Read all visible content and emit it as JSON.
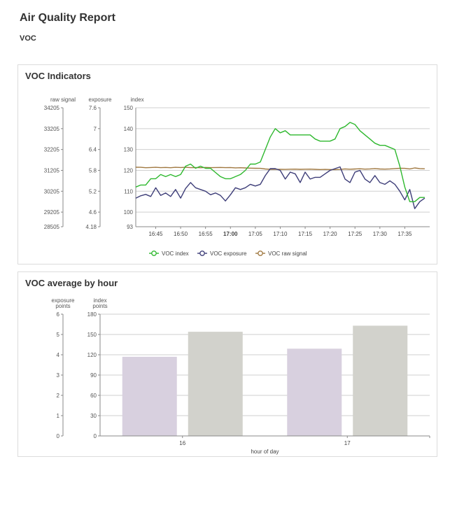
{
  "page": {
    "title": "Air Quality Report",
    "subtitle": "VOC"
  },
  "chart_data": [
    {
      "type": "line",
      "title": "VOC Indicators",
      "x_labels": [
        "16:45",
        "16:50",
        "16:55",
        "17:00",
        "17:05",
        "17:10",
        "17:15",
        "17:20",
        "17:25",
        "17:30",
        "17:35"
      ],
      "x_bold_label": "17:00",
      "x_range": [
        "16:41",
        "17:40"
      ],
      "axes": {
        "raw_signal": {
          "label": "raw signal",
          "min": 28505,
          "max": 34205,
          "ticks": [
            "34205",
            "33205",
            "32205",
            "31205",
            "30205",
            "29205",
            "28505"
          ]
        },
        "exposure": {
          "label": "exposure",
          "min": 4.18,
          "max": 7.6,
          "ticks": [
            "7.6",
            "7",
            "6.4",
            "5.8",
            "5.2",
            "4.6",
            "4.18"
          ]
        },
        "index": {
          "label": "index",
          "min": 93,
          "max": 150,
          "ticks": [
            "150",
            "140",
            "130",
            "120",
            "110",
            "100",
            "93"
          ]
        }
      },
      "grid": true,
      "legend_position": "bottom",
      "series": [
        {
          "name": "VOC index",
          "color": "#2eb82e",
          "axis": "index",
          "points": [
            [
              "16:41",
              112
            ],
            [
              "16:42",
              113
            ],
            [
              "16:43",
              113
            ],
            [
              "16:44",
              116
            ],
            [
              "16:45",
              116
            ],
            [
              "16:46",
              118
            ],
            [
              "16:47",
              117
            ],
            [
              "16:48",
              118
            ],
            [
              "16:49",
              117
            ],
            [
              "16:50",
              118
            ],
            [
              "16:51",
              122
            ],
            [
              "16:52",
              123
            ],
            [
              "16:53",
              121
            ],
            [
              "16:54",
              122
            ],
            [
              "16:55",
              121
            ],
            [
              "16:56",
              121
            ],
            [
              "16:57",
              119
            ],
            [
              "16:58",
              117
            ],
            [
              "16:59",
              116
            ],
            [
              "17:00",
              116
            ],
            [
              "17:01",
              117
            ],
            [
              "17:02",
              118
            ],
            [
              "17:03",
              120
            ],
            [
              "17:04",
              123
            ],
            [
              "17:05",
              123
            ],
            [
              "17:06",
              124
            ],
            [
              "17:07",
              130
            ],
            [
              "17:08",
              136
            ],
            [
              "17:09",
              140
            ],
            [
              "17:10",
              138
            ],
            [
              "17:11",
              139
            ],
            [
              "17:12",
              137
            ],
            [
              "17:13",
              137
            ],
            [
              "17:14",
              137
            ],
            [
              "17:15",
              137
            ],
            [
              "17:16",
              137
            ],
            [
              "17:17",
              135
            ],
            [
              "17:18",
              134
            ],
            [
              "17:19",
              134
            ],
            [
              "17:20",
              134
            ],
            [
              "17:21",
              135
            ],
            [
              "17:22",
              140
            ],
            [
              "17:23",
              141
            ],
            [
              "17:24",
              143
            ],
            [
              "17:25",
              142
            ],
            [
              "17:26",
              139
            ],
            [
              "17:27",
              137
            ],
            [
              "17:28",
              135
            ],
            [
              "17:29",
              133
            ],
            [
              "17:30",
              132
            ],
            [
              "17:31",
              132
            ],
            [
              "17:32",
              131
            ],
            [
              "17:33",
              130
            ],
            [
              "17:34",
              122
            ],
            [
              "17:35",
              112
            ],
            [
              "17:36",
              105
            ],
            [
              "17:37",
              105
            ],
            [
              "17:38",
              107
            ],
            [
              "17:39",
              107
            ]
          ]
        },
        {
          "name": "VOC exposure",
          "color": "#3d3d78",
          "axis": "exposure",
          "points": [
            [
              "16:41",
              5.0
            ],
            [
              "16:42",
              5.07
            ],
            [
              "16:43",
              5.11
            ],
            [
              "16:44",
              5.05
            ],
            [
              "16:45",
              5.3
            ],
            [
              "16:46",
              5.08
            ],
            [
              "16:47",
              5.15
            ],
            [
              "16:48",
              5.05
            ],
            [
              "16:49",
              5.25
            ],
            [
              "16:50",
              5.0
            ],
            [
              "16:51",
              5.28
            ],
            [
              "16:52",
              5.45
            ],
            [
              "16:53",
              5.3
            ],
            [
              "16:54",
              5.25
            ],
            [
              "16:55",
              5.2
            ],
            [
              "16:56",
              5.1
            ],
            [
              "16:57",
              5.15
            ],
            [
              "16:58",
              5.08
            ],
            [
              "16:59",
              4.92
            ],
            [
              "17:00",
              5.1
            ],
            [
              "17:01",
              5.3
            ],
            [
              "17:02",
              5.25
            ],
            [
              "17:03",
              5.3
            ],
            [
              "17:04",
              5.4
            ],
            [
              "17:05",
              5.35
            ],
            [
              "17:06",
              5.4
            ],
            [
              "17:07",
              5.65
            ],
            [
              "17:08",
              5.85
            ],
            [
              "17:09",
              5.85
            ],
            [
              "17:10",
              5.8
            ],
            [
              "17:11",
              5.55
            ],
            [
              "17:12",
              5.75
            ],
            [
              "17:13",
              5.7
            ],
            [
              "17:14",
              5.45
            ],
            [
              "17:15",
              5.75
            ],
            [
              "17:16",
              5.55
            ],
            [
              "17:17",
              5.6
            ],
            [
              "17:18",
              5.6
            ],
            [
              "17:19",
              5.7
            ],
            [
              "17:20",
              5.8
            ],
            [
              "17:21",
              5.85
            ],
            [
              "17:22",
              5.9
            ],
            [
              "17:23",
              5.55
            ],
            [
              "17:24",
              5.45
            ],
            [
              "17:25",
              5.75
            ],
            [
              "17:26",
              5.8
            ],
            [
              "17:27",
              5.55
            ],
            [
              "17:28",
              5.45
            ],
            [
              "17:29",
              5.65
            ],
            [
              "17:30",
              5.45
            ],
            [
              "17:31",
              5.4
            ],
            [
              "17:32",
              5.5
            ],
            [
              "17:33",
              5.4
            ],
            [
              "17:34",
              5.2
            ],
            [
              "17:35",
              4.95
            ],
            [
              "17:36",
              5.25
            ],
            [
              "17:37",
              4.7
            ],
            [
              "17:38",
              4.9
            ],
            [
              "17:39",
              5.0
            ]
          ]
        },
        {
          "name": "VOC raw signal",
          "color": "#a07840",
          "axis": "raw_signal",
          "points": [
            [
              "16:41",
              31355
            ],
            [
              "16:42",
              31350
            ],
            [
              "16:43",
              31330
            ],
            [
              "16:44",
              31340
            ],
            [
              "16:45",
              31350
            ],
            [
              "16:46",
              31335
            ],
            [
              "16:47",
              31345
            ],
            [
              "16:48",
              31330
            ],
            [
              "16:49",
              31350
            ],
            [
              "16:50",
              31340
            ],
            [
              "16:51",
              31350
            ],
            [
              "16:52",
              31335
            ],
            [
              "16:53",
              31340
            ],
            [
              "16:54",
              31330
            ],
            [
              "16:55",
              31345
            ],
            [
              "16:56",
              31335
            ],
            [
              "16:57",
              31340
            ],
            [
              "16:58",
              31345
            ],
            [
              "16:59",
              31335
            ],
            [
              "17:00",
              31340
            ],
            [
              "17:01",
              31325
            ],
            [
              "17:02",
              31330
            ],
            [
              "17:03",
              31320
            ],
            [
              "17:04",
              31310
            ],
            [
              "17:05",
              31305
            ],
            [
              "17:06",
              31300
            ],
            [
              "17:07",
              31270
            ],
            [
              "17:08",
              31255
            ],
            [
              "17:09",
              31250
            ],
            [
              "17:10",
              31255
            ],
            [
              "17:11",
              31250
            ],
            [
              "17:12",
              31260
            ],
            [
              "17:13",
              31265
            ],
            [
              "17:14",
              31255
            ],
            [
              "17:15",
              31260
            ],
            [
              "17:16",
              31265
            ],
            [
              "17:17",
              31255
            ],
            [
              "17:18",
              31245
            ],
            [
              "17:19",
              31250
            ],
            [
              "17:20",
              31245
            ],
            [
              "17:21",
              31240
            ],
            [
              "17:22",
              31250
            ],
            [
              "17:23",
              31275
            ],
            [
              "17:24",
              31260
            ],
            [
              "17:25",
              31270
            ],
            [
              "17:26",
              31280
            ],
            [
              "17:27",
              31265
            ],
            [
              "17:28",
              31275
            ],
            [
              "17:29",
              31290
            ],
            [
              "17:30",
              31270
            ],
            [
              "17:31",
              31265
            ],
            [
              "17:32",
              31275
            ],
            [
              "17:33",
              31290
            ],
            [
              "17:34",
              31305
            ],
            [
              "17:35",
              31300
            ],
            [
              "17:36",
              31275
            ],
            [
              "17:37",
              31320
            ],
            [
              "17:38",
              31290
            ],
            [
              "17:39",
              31280
            ]
          ]
        }
      ]
    },
    {
      "type": "bar",
      "title": "VOC average by hour",
      "categories": [
        "16",
        "17"
      ],
      "xlabel": "hour of day",
      "axes": {
        "exposure": {
          "label_line1": "exposure",
          "label_line2": "points",
          "min": 0,
          "max": 6,
          "ticks": [
            "6",
            "5",
            "4",
            "3",
            "2",
            "1",
            "0"
          ]
        },
        "index": {
          "label_line1": "index",
          "label_line2": "points",
          "min": 0,
          "max": 180,
          "ticks": [
            "180",
            "150",
            "120",
            "90",
            "60",
            "30",
            "0"
          ]
        }
      },
      "grid": true,
      "series": [
        {
          "axis": "exposure",
          "color": "#d8d0df",
          "values": [
            3.9,
            4.3
          ]
        },
        {
          "axis": "index",
          "color": "#d2d2cc",
          "values": [
            154,
            163
          ]
        }
      ]
    }
  ]
}
